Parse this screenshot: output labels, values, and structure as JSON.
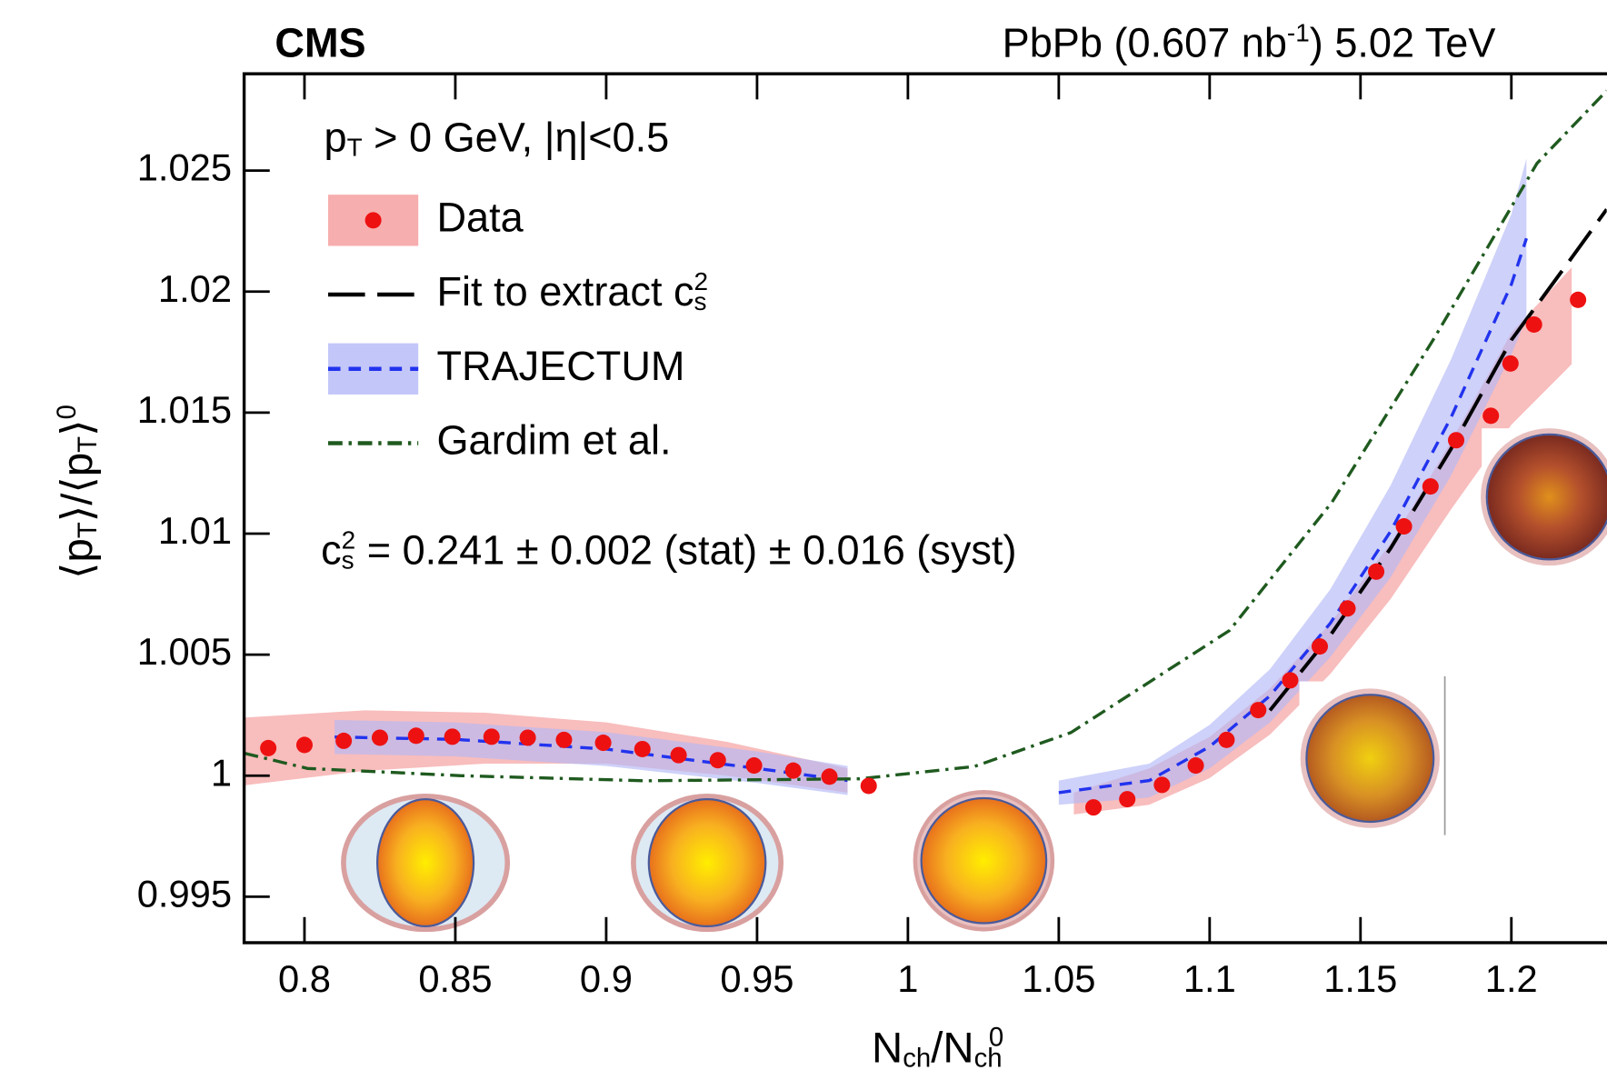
{
  "chart_data": {
    "type": "line",
    "experiment": "CMS",
    "title": [
      {
        "t": "PbPb (0.607 nb"
      },
      {
        "sup": "-1"
      },
      {
        "t": ") 5.02 TeV"
      }
    ],
    "x_label": [
      {
        "t": "N"
      },
      {
        "sub": "ch"
      },
      {
        "t": "/N"
      },
      {
        "sub": "ch"
      },
      {
        "sup": "0"
      }
    ],
    "y_label": [
      {
        "t": "⟨p"
      },
      {
        "sub": "T"
      },
      {
        "t": "⟩/⟨p"
      },
      {
        "sub": "T"
      },
      {
        "t": "⟩"
      },
      {
        "sup": "0"
      }
    ],
    "legend_header": [
      {
        "t": "p"
      },
      {
        "sub": "T"
      },
      {
        "t": " > 0 GeV, |η|<0.5"
      }
    ],
    "annotation": [
      {
        "t": "c"
      },
      {
        "sub": "s"
      },
      {
        "sup": "2"
      },
      {
        "t": " = 0.241 ± 0.002 (stat) ± 0.016 (syst)"
      }
    ],
    "xlim": [
      0.78,
      1.2316
    ],
    "ylim": [
      0.9931,
      1.029
    ],
    "xticks": [
      0.8,
      0.85,
      0.9,
      0.95,
      1,
      1.05,
      1.1,
      1.15,
      1.2
    ],
    "yticks": [
      0.995,
      1,
      1.005,
      1.01,
      1.015,
      1.02,
      1.025
    ],
    "series": [
      {
        "name": [
          {
            "t": "Data"
          }
        ],
        "style": "points",
        "color": "#ee1111",
        "band_color": "#f59a9a",
        "x": [
          0.788,
          0.8,
          0.813,
          0.825,
          0.837,
          0.849,
          0.862,
          0.874,
          0.886,
          0.899,
          0.912,
          0.924,
          0.937,
          0.949,
          0.962,
          0.974,
          0.987,
          1.0615,
          1.0727,
          1.0842,
          1.0954,
          1.1056,
          1.1161,
          1.1267,
          1.1365,
          1.1457,
          1.1552,
          1.1644,
          1.1732,
          1.1817,
          1.1932,
          1.1997,
          1.2075,
          1.2221
        ],
        "values": [
          1.00114,
          1.00127,
          1.00144,
          1.00157,
          1.00165,
          1.00161,
          1.00161,
          1.00157,
          1.00148,
          1.00136,
          1.0011,
          1.00085,
          1.00064,
          1.00042,
          1.00021,
          0.99996,
          0.99958,
          0.99869,
          0.99903,
          0.99962,
          1.00042,
          1.00148,
          1.00271,
          1.00394,
          1.00534,
          1.00691,
          1.00843,
          1.0103,
          1.01195,
          1.01386,
          1.01487,
          1.01703,
          1.01864,
          1.01966
        ],
        "band_x": [
          0.78,
          0.82,
          0.86,
          0.9,
          0.94,
          0.98,
          null,
          1.055,
          1.08,
          1.1,
          1.12,
          1.14,
          1.16,
          1.18,
          1.2,
          1.22
        ],
        "band_upper": [
          1.0024,
          1.0027,
          1.0026,
          1.0022,
          1.0014,
          1.0003,
          null,
          0.9993,
          1.0003,
          1.0016,
          1.0036,
          1.0063,
          1.0096,
          1.0138,
          1.0183,
          1.021
        ],
        "band_lower": [
          0.9996,
          1.0002,
          1.0005,
          1.0005,
          1.0,
          0.9993,
          null,
          0.9984,
          0.9988,
          0.9999,
          1.0017,
          1.0042,
          1.0073,
          1.011,
          1.0145,
          1.017
        ]
      },
      {
        "name": [
          {
            "t": "Fit to extract c"
          },
          {
            "sub": "s"
          },
          {
            "sup": "2"
          }
        ],
        "style": "dashed",
        "color": "#000000",
        "x": [
          1.12,
          1.14,
          1.16,
          1.18,
          1.2,
          1.22,
          1.2316
        ],
        "values": [
          1.0027,
          1.0058,
          1.0094,
          1.0135,
          1.018,
          1.0214,
          1.0234
        ]
      },
      {
        "name": [
          {
            "t": "TRAJECTUM"
          }
        ],
        "style": "short-dashed",
        "color": "#2233ee",
        "band_color": "#b4b8f6",
        "x": [
          0.81,
          0.85,
          0.9,
          0.95,
          0.98,
          null,
          1.05,
          1.08,
          1.1,
          1.12,
          1.14,
          1.16,
          1.18,
          1.2,
          1.205
        ],
        "values": [
          1.0016,
          1.0015,
          1.0011,
          1.0003,
          0.9998,
          null,
          0.9993,
          0.9998,
          1.0012,
          1.0033,
          1.0063,
          1.0101,
          1.0148,
          1.0203,
          1.0222
        ],
        "band_upper": [
          1.0023,
          1.0022,
          1.0018,
          1.001,
          1.0004,
          null,
          0.9998,
          1.0005,
          1.0021,
          1.0044,
          1.0077,
          1.012,
          1.0172,
          1.0232,
          1.0255
        ],
        "band_lower": [
          1.0009,
          1.0008,
          1.0004,
          0.9997,
          0.9992,
          null,
          0.9988,
          0.9991,
          1.0003,
          1.0022,
          1.0049,
          1.0082,
          1.0124,
          1.0174,
          1.0189
        ]
      },
      {
        "name": [
          {
            "t": "Gardim et al."
          }
        ],
        "style": "dash-dot",
        "color": "#1f5a1f",
        "x": [
          0.78,
          0.801,
          0.852,
          0.913,
          0.984,
          1.022,
          1.054,
          1.1066,
          1.1406,
          1.1745,
          1.2085,
          1.2316
        ],
        "values": [
          1.00093,
          1.0003,
          1.0,
          0.99979,
          0.99987,
          1.00038,
          1.00178,
          1.006,
          1.01131,
          1.01809,
          1.0253,
          1.0283
        ]
      }
    ]
  }
}
